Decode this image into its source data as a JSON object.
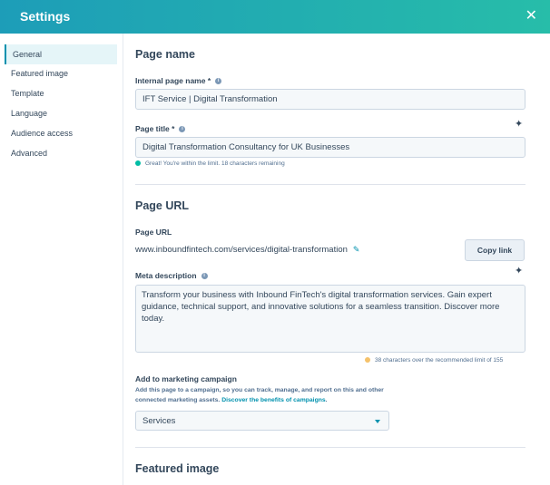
{
  "header": {
    "title": "Settings",
    "close_icon": "close-icon"
  },
  "sidebar": {
    "items": [
      {
        "label": "General",
        "active": true
      },
      {
        "label": "Featured image"
      },
      {
        "label": "Template"
      },
      {
        "label": "Language"
      },
      {
        "label": "Audience access"
      },
      {
        "label": "Advanced"
      }
    ]
  },
  "page_name": {
    "heading": "Page name",
    "internal_label": "Internal page name *",
    "internal_value": "IFT Service | Digital Transformation",
    "title_label": "Page title *",
    "title_value": "Digital Transformation Consultancy for UK Businesses",
    "title_hint": "Great! You're within the limit. 18 characters remaining",
    "hint_color": "#00bda5"
  },
  "page_url": {
    "heading": "Page URL",
    "url_label": "Page URL",
    "url_value": "www.inboundfintech.com/services/digital-transformation",
    "copy_label": "Copy link",
    "meta_label": "Meta description",
    "meta_value": "Transform your business with Inbound FinTech's digital transformation services. Gain expert guidance, technical support, and innovative solutions for a seamless transition. Discover more today.",
    "meta_hint": "38 characters over the recommended limit of 155",
    "warn_color": "#f5c26b"
  },
  "campaign": {
    "label": "Add to marketing campaign",
    "help": "Add this page to a campaign, so you can track, manage, and report on this and other connected marketing assets.",
    "link": "Discover the benefits of campaigns",
    "selected": "Services"
  },
  "featured": {
    "heading": "Featured image"
  }
}
